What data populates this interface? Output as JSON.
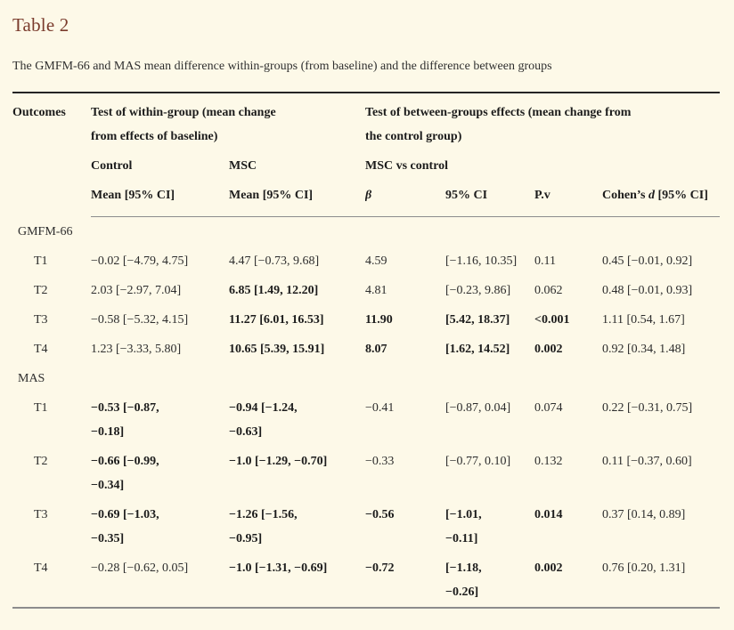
{
  "page": {
    "title": "Table 2",
    "subtitle": "The GMFM-66 and MAS mean difference within-groups (from baseline) and the difference between groups",
    "accent_color": "#7a3b2c",
    "background_color": "#fdf9e8"
  },
  "table": {
    "header": {
      "outcomes": "Outcomes",
      "within_group": "Test of within-group (mean change\nfrom effects of baseline)",
      "between_groups": "Test of between-groups effects (mean change from\nthe control group)",
      "control": "Control",
      "msc": "MSC",
      "msc_vs_control": "MSC vs control",
      "control_mean": "Mean [95% CI]",
      "msc_mean": "Mean [95% CI]",
      "beta": "β",
      "ci": "95% CI",
      "pv": "P.v",
      "cohens_pre": "Cohen’s ",
      "cohens_d": "d",
      "cohens_post": " [95% CI]"
    },
    "sections": [
      {
        "label": "GMFM-66",
        "rows": [
          {
            "time": "T1",
            "control": "−0.02 [−4.79, 4.75]",
            "msc": "4.47 [−0.73, 9.68]",
            "beta": "4.59",
            "ci": "[−1.16, 10.35]",
            "pv": "0.11",
            "cohens_d": "0.45 [−0.01, 0.92]"
          },
          {
            "time": "T2",
            "control": "2.03 [−2.97, 7.04]",
            "msc": "6.85 [1.49, 12.20]",
            "beta": "4.81",
            "ci": "[−0.23, 9.86]",
            "pv": "0.062",
            "cohens_d": "0.48 [−0.01, 0.93]"
          },
          {
            "time": "T3",
            "control": "−0.58 [−5.32, 4.15]",
            "msc": "11.27 [6.01, 16.53]",
            "beta": "11.90",
            "ci": "[5.42, 18.37]",
            "pv": "<0.001",
            "cohens_d": "1.11 [0.54, 1.67]"
          },
          {
            "time": "T4",
            "control": "1.23 [−3.33, 5.80]",
            "msc": "10.65 [5.39, 15.91]",
            "beta": "8.07",
            "ci": "[1.62, 14.52]",
            "pv": "0.002",
            "cohens_d": "0.92 [0.34, 1.48]"
          }
        ]
      },
      {
        "label": "MAS",
        "rows": [
          {
            "time": "T1",
            "control": "−0.53 [−0.87,\n−0.18]",
            "msc": "−0.94 [−1.24,\n−0.63]",
            "beta": "−0.41",
            "ci": "[−0.87, 0.04]",
            "pv": "0.074",
            "cohens_d": "0.22 [−0.31, 0.75]"
          },
          {
            "time": "T2",
            "control": "−0.66 [−0.99,\n−0.34]",
            "msc": "−1.0 [−1.29, −0.70]",
            "beta": "−0.33",
            "ci": "[−0.77, 0.10]",
            "pv": "0.132",
            "cohens_d": "0.11 [−0.37, 0.60]"
          },
          {
            "time": "T3",
            "control": "−0.69 [−1.03,\n−0.35]",
            "msc": "−1.26 [−1.56,\n−0.95]",
            "beta": "−0.56",
            "ci": "[−1.01,\n−0.11]",
            "pv": "0.014",
            "cohens_d": "0.37 [0.14, 0.89]"
          },
          {
            "time": "T4",
            "control": "−0.28 [−0.62, 0.05]",
            "msc": "−1.0 [−1.31, −0.69]",
            "beta": "−0.72",
            "ci": "[−1.18,\n−0.26]",
            "pv": "0.002",
            "cohens_d": "0.76 [0.20, 1.31]"
          }
        ]
      }
    ]
  }
}
